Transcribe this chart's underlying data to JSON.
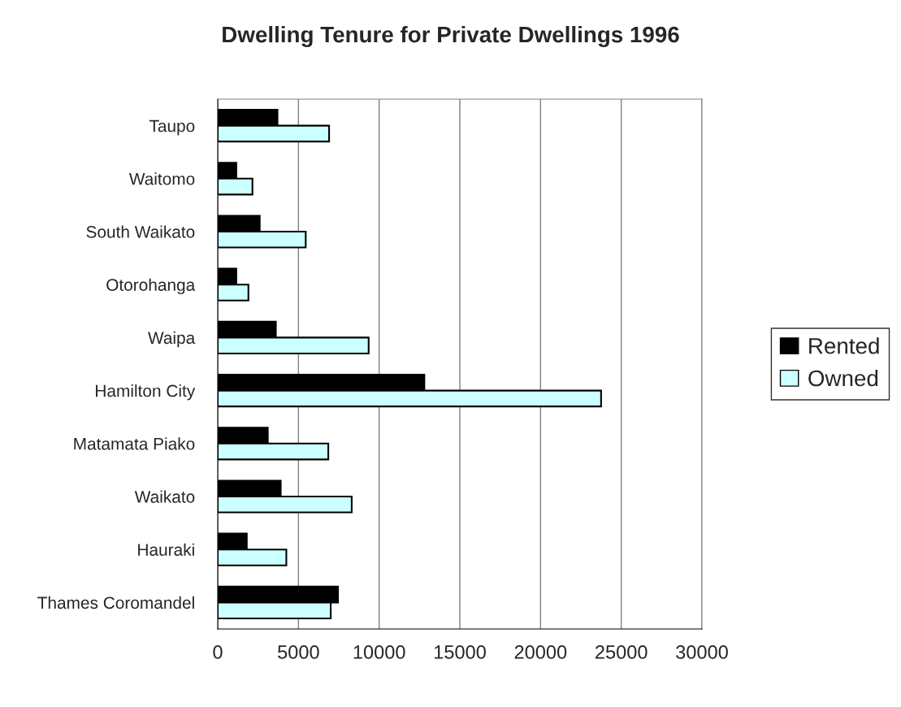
{
  "chart_data": {
    "type": "bar",
    "orientation": "horizontal",
    "title": "Dwelling Tenure for Private Dwellings 1996",
    "categories": [
      "Taupo",
      "Waitomo",
      "South Waikato",
      "Otorohanga",
      "Waipa",
      "Hamilton City",
      "Matamata Piako",
      "Waikato",
      "Hauraki",
      "Thames Coromandel"
    ],
    "series": [
      {
        "name": "Rented",
        "color": "#000000",
        "values": [
          3700,
          1150,
          2600,
          1150,
          3600,
          12800,
          3100,
          3900,
          1800,
          7450
        ]
      },
      {
        "name": "Owned",
        "color": "#ccffff",
        "values": [
          6900,
          2150,
          5450,
          1900,
          9350,
          23750,
          6850,
          8300,
          4250,
          7000
        ]
      }
    ],
    "xlim": [
      0,
      30000
    ],
    "xticks": [
      0,
      5000,
      10000,
      15000,
      20000,
      25000,
      30000
    ],
    "grid": "x",
    "legend": "right"
  }
}
